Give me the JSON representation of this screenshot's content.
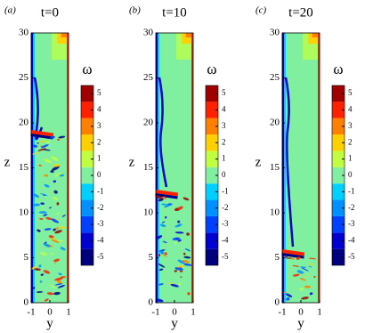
{
  "chart_data": [
    {
      "type": "field",
      "panel_label": "(a)",
      "title": "t=0",
      "xlabel": "y",
      "ylabel": "z",
      "xlim": [
        -1,
        1
      ],
      "xticks": [
        -1,
        0,
        1
      ],
      "ylim": [
        0,
        30
      ],
      "yticks": [
        0,
        5,
        10,
        15,
        20,
        25,
        30
      ],
      "colorbar": {
        "label": "ω",
        "lim": [
          -5.5,
          5.5
        ],
        "ticks": [
          -5,
          -4,
          -3,
          -2,
          -1,
          0,
          1,
          2,
          3,
          4,
          5
        ],
        "colors": [
          "#00007f",
          "#0000d0",
          "#0040ff",
          "#0090ff",
          "#00d0ff",
          "#80f0a0",
          "#c0ff40",
          "#ffd000",
          "#ff8000",
          "#ff2000",
          "#a00000"
        ]
      }
    },
    {
      "type": "field",
      "panel_label": "(b)",
      "title": "t=10",
      "xlabel": "y",
      "ylabel": "z",
      "xlim": [
        -1,
        1
      ],
      "xticks": [
        -1,
        0,
        1
      ],
      "ylim": [
        0,
        30
      ],
      "yticks": [
        0,
        5,
        10,
        15,
        20,
        25,
        30
      ],
      "colorbar": {
        "label": "ω",
        "lim": [
          -5.5,
          5.5
        ],
        "ticks": [
          -5,
          -4,
          -3,
          -2,
          -1,
          0,
          1,
          2,
          3,
          4,
          5
        ],
        "colors": [
          "#00007f",
          "#0000d0",
          "#0040ff",
          "#0090ff",
          "#00d0ff",
          "#80f0a0",
          "#c0ff40",
          "#ffd000",
          "#ff8000",
          "#ff2000",
          "#a00000"
        ]
      }
    },
    {
      "type": "field",
      "panel_label": "(c)",
      "title": "t=20",
      "xlabel": "y",
      "ylabel": "z",
      "xlim": [
        -1,
        1
      ],
      "xticks": [
        -1,
        0,
        1
      ],
      "ylim": [
        0,
        30
      ],
      "yticks": [
        0,
        5,
        10,
        15,
        20,
        25,
        30
      ],
      "colorbar": {
        "label": "ω",
        "lim": [
          -5.5,
          5.5
        ],
        "ticks": [
          -5,
          -4,
          -3,
          -2,
          -1,
          0,
          1,
          2,
          3,
          4,
          5
        ],
        "colors": [
          "#00007f",
          "#0000d0",
          "#0040ff",
          "#0090ff",
          "#00d0ff",
          "#80f0a0",
          "#c0ff40",
          "#ffd000",
          "#ff8000",
          "#ff2000",
          "#a00000"
        ]
      }
    }
  ]
}
